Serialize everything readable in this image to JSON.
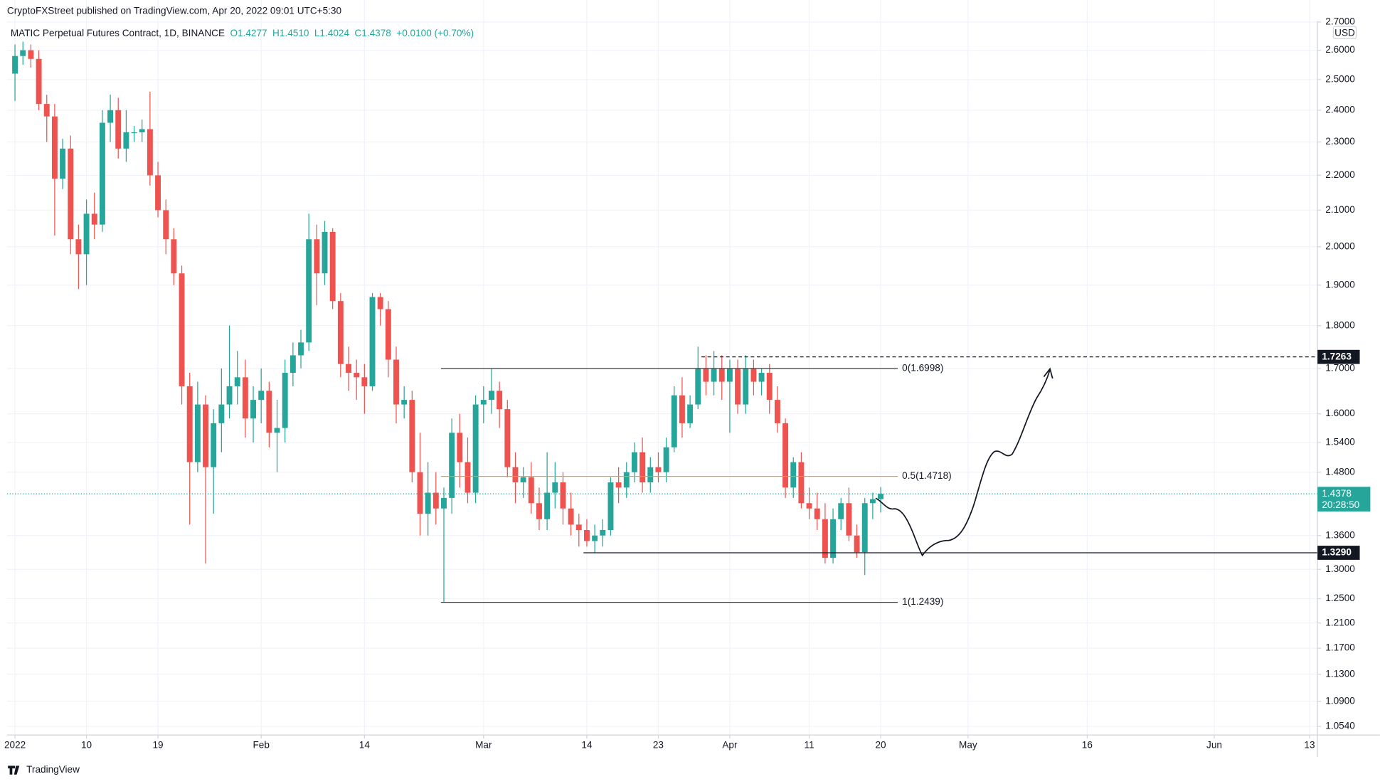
{
  "page": {
    "byline": "CryptoFXStreet published on TradingView.com, Apr 20, 2022 09:01 UTC+5:30",
    "footer": "TradingView"
  },
  "chart_data": {
    "type": "candlestick",
    "title": "MATIC Perpetual Futures Contract, 1D, BINANCE",
    "ohlc_labels": [
      "O1.4277",
      "H1.4510",
      "L1.4024",
      "C1.4378"
    ],
    "change": "+0.0100 (+0.70%)",
    "currency": "USD",
    "up_color": "#26a69a",
    "down_color": "#ef5350",
    "log_scale": true,
    "grid": true,
    "xlim": [
      "2021-12-31",
      "2022-06-14"
    ],
    "ylim": [
      1.042,
      2.703
    ],
    "xticks": [
      {
        "value": "2022-01-01",
        "label": "2022"
      },
      {
        "value": "2022-01-10",
        "label": "10"
      },
      {
        "value": "2022-01-19",
        "label": "19"
      },
      {
        "value": "2022-02-01",
        "label": "Feb"
      },
      {
        "value": "2022-02-14",
        "label": "14"
      },
      {
        "value": "2022-03-01",
        "label": "Mar"
      },
      {
        "value": "2022-03-14",
        "label": "14"
      },
      {
        "value": "2022-03-23",
        "label": "23"
      },
      {
        "value": "2022-04-01",
        "label": "Apr"
      },
      {
        "value": "2022-04-11",
        "label": "11"
      },
      {
        "value": "2022-04-20",
        "label": "20"
      },
      {
        "value": "2022-05-01",
        "label": "May"
      },
      {
        "value": "2022-05-16",
        "label": "16"
      },
      {
        "value": "2022-06-01",
        "label": "Jun"
      },
      {
        "value": "2022-06-13",
        "label": "13"
      }
    ],
    "yticks": [
      {
        "value": 1.054,
        "label": "1.0540"
      },
      {
        "value": 1.09,
        "label": "1.0900"
      },
      {
        "value": 1.13,
        "label": "1.1300"
      },
      {
        "value": 1.17,
        "label": "1.1700"
      },
      {
        "value": 1.21,
        "label": "1.2100"
      },
      {
        "value": 1.25,
        "label": "1.2500"
      },
      {
        "value": 1.3,
        "label": "1.3000"
      },
      {
        "value": 1.36,
        "label": "1.3600"
      },
      {
        "value": 1.48,
        "label": "1.4800"
      },
      {
        "value": 1.54,
        "label": "1.5400"
      },
      {
        "value": 1.6,
        "label": "1.6000"
      },
      {
        "value": 1.7,
        "label": "1.7000"
      },
      {
        "value": 1.8,
        "label": "1.8000"
      },
      {
        "value": 1.9,
        "label": "1.9000"
      },
      {
        "value": 2.0,
        "label": "2.0000"
      },
      {
        "value": 2.1,
        "label": "2.1000"
      },
      {
        "value": 2.2,
        "label": "2.2000"
      },
      {
        "value": 2.3,
        "label": "2.3000"
      },
      {
        "value": 2.4,
        "label": "2.4000"
      },
      {
        "value": 2.5,
        "label": "2.5000"
      },
      {
        "value": 2.6,
        "label": "2.6000"
      },
      {
        "value": 2.7,
        "label": "2.7000"
      }
    ],
    "x": [
      "2022-01-01",
      "2022-01-02",
      "2022-01-03",
      "2022-01-04",
      "2022-01-05",
      "2022-01-06",
      "2022-01-07",
      "2022-01-08",
      "2022-01-09",
      "2022-01-10",
      "2022-01-11",
      "2022-01-12",
      "2022-01-13",
      "2022-01-14",
      "2022-01-15",
      "2022-01-16",
      "2022-01-17",
      "2022-01-18",
      "2022-01-19",
      "2022-01-20",
      "2022-01-21",
      "2022-01-22",
      "2022-01-23",
      "2022-01-24",
      "2022-01-25",
      "2022-01-26",
      "2022-01-27",
      "2022-01-28",
      "2022-01-29",
      "2022-01-30",
      "2022-01-31",
      "2022-02-01",
      "2022-02-02",
      "2022-02-03",
      "2022-02-04",
      "2022-02-05",
      "2022-02-06",
      "2022-02-07",
      "2022-02-08",
      "2022-02-09",
      "2022-02-10",
      "2022-02-11",
      "2022-02-12",
      "2022-02-13",
      "2022-02-14",
      "2022-02-15",
      "2022-02-16",
      "2022-02-17",
      "2022-02-18",
      "2022-02-19",
      "2022-02-20",
      "2022-02-21",
      "2022-02-22",
      "2022-02-23",
      "2022-02-24",
      "2022-02-25",
      "2022-02-26",
      "2022-02-27",
      "2022-02-28",
      "2022-03-01",
      "2022-03-02",
      "2022-03-03",
      "2022-03-04",
      "2022-03-05",
      "2022-03-06",
      "2022-03-07",
      "2022-03-08",
      "2022-03-09",
      "2022-03-10",
      "2022-03-11",
      "2022-03-12",
      "2022-03-13",
      "2022-03-14",
      "2022-03-15",
      "2022-03-16",
      "2022-03-17",
      "2022-03-18",
      "2022-03-19",
      "2022-03-20",
      "2022-03-21",
      "2022-03-22",
      "2022-03-23",
      "2022-03-24",
      "2022-03-25",
      "2022-03-26",
      "2022-03-27",
      "2022-03-28",
      "2022-03-29",
      "2022-03-30",
      "2022-03-31",
      "2022-04-01",
      "2022-04-02",
      "2022-04-03",
      "2022-04-04",
      "2022-04-05",
      "2022-04-06",
      "2022-04-07",
      "2022-04-08",
      "2022-04-09",
      "2022-04-10",
      "2022-04-11",
      "2022-04-12",
      "2022-04-13",
      "2022-04-14",
      "2022-04-15",
      "2022-04-16",
      "2022-04-17",
      "2022-04-18",
      "2022-04-19",
      "2022-04-20"
    ],
    "open": [
      2.52,
      2.58,
      2.6,
      2.57,
      2.42,
      2.38,
      2.19,
      2.28,
      2.02,
      1.98,
      2.09,
      2.06,
      2.36,
      2.4,
      2.28,
      2.33,
      2.33,
      2.34,
      2.2,
      2.1,
      2.02,
      1.93,
      1.66,
      1.5,
      1.62,
      1.49,
      1.58,
      1.62,
      1.66,
      1.68,
      1.59,
      1.63,
      1.65,
      1.56,
      1.57,
      1.69,
      1.73,
      1.76,
      2.02,
      1.93,
      2.04,
      1.86,
      1.71,
      1.69,
      1.68,
      1.66,
      1.87,
      1.84,
      1.72,
      1.62,
      1.63,
      1.48,
      1.4,
      1.44,
      1.41,
      1.43,
      1.56,
      1.5,
      1.44,
      1.62,
      1.63,
      1.65,
      1.61,
      1.49,
      1.46,
      1.47,
      1.42,
      1.39,
      1.44,
      1.46,
      1.41,
      1.38,
      1.37,
      1.35,
      1.36,
      1.37,
      1.46,
      1.45,
      1.48,
      1.52,
      1.46,
      1.49,
      1.48,
      1.53,
      1.64,
      1.58,
      1.62,
      1.7,
      1.67,
      1.7,
      1.67,
      1.7,
      1.62,
      1.7,
      1.67,
      1.69,
      1.63,
      1.58,
      1.45,
      1.5,
      1.42,
      1.41,
      1.39,
      1.32,
      1.39,
      1.42,
      1.36,
      1.33,
      1.42,
      1.4277
    ],
    "high": [
      2.62,
      2.63,
      2.62,
      2.6,
      2.45,
      2.42,
      2.31,
      2.32,
      2.06,
      2.13,
      2.15,
      2.4,
      2.45,
      2.44,
      2.4,
      2.35,
      2.37,
      2.46,
      2.24,
      2.13,
      2.05,
      1.95,
      1.69,
      1.67,
      1.64,
      1.61,
      1.7,
      1.8,
      1.74,
      1.72,
      1.66,
      1.7,
      1.67,
      1.63,
      1.72,
      1.76,
      1.79,
      2.09,
      2.06,
      2.07,
      2.05,
      1.88,
      1.75,
      1.72,
      1.71,
      1.88,
      1.88,
      1.86,
      1.75,
      1.66,
      1.65,
      1.56,
      1.5,
      1.48,
      1.45,
      1.59,
      1.6,
      1.55,
      1.64,
      1.66,
      1.7,
      1.67,
      1.63,
      1.52,
      1.49,
      1.5,
      1.45,
      1.52,
      1.5,
      1.48,
      1.44,
      1.4,
      1.39,
      1.38,
      1.39,
      1.47,
      1.49,
      1.5,
      1.54,
      1.55,
      1.51,
      1.52,
      1.55,
      1.66,
      1.68,
      1.64,
      1.75,
      1.73,
      1.74,
      1.73,
      1.72,
      1.72,
      1.73,
      1.72,
      1.7,
      1.71,
      1.66,
      1.59,
      1.51,
      1.52,
      1.45,
      1.44,
      1.42,
      1.41,
      1.43,
      1.45,
      1.38,
      1.43,
      1.44,
      1.451
    ],
    "low": [
      2.43,
      2.55,
      2.54,
      2.4,
      2.3,
      2.03,
      2.16,
      1.98,
      1.89,
      1.9,
      2.02,
      2.04,
      2.3,
      2.25,
      2.24,
      2.3,
      2.3,
      2.17,
      2.08,
      1.98,
      1.9,
      1.62,
      1.38,
      1.48,
      1.31,
      1.4,
      1.52,
      1.59,
      1.62,
      1.55,
      1.54,
      1.58,
      1.53,
      1.48,
      1.54,
      1.66,
      1.7,
      1.74,
      1.85,
      1.9,
      1.84,
      1.68,
      1.65,
      1.63,
      1.6,
      1.65,
      1.8,
      1.68,
      1.58,
      1.59,
      1.46,
      1.36,
      1.36,
      1.38,
      1.2439,
      1.4,
      1.45,
      1.42,
      1.42,
      1.58,
      1.6,
      1.57,
      1.47,
      1.42,
      1.43,
      1.4,
      1.37,
      1.37,
      1.41,
      1.38,
      1.36,
      1.34,
      1.34,
      1.329,
      1.34,
      1.36,
      1.42,
      1.43,
      1.46,
      1.44,
      1.44,
      1.46,
      1.46,
      1.52,
      1.55,
      1.57,
      1.61,
      1.64,
      1.64,
      1.63,
      1.56,
      1.6,
      1.6,
      1.64,
      1.64,
      1.6,
      1.56,
      1.43,
      1.43,
      1.41,
      1.39,
      1.37,
      1.31,
      1.31,
      1.37,
      1.35,
      1.32,
      1.29,
      1.39,
      1.4024
    ],
    "close": [
      2.58,
      2.6,
      2.57,
      2.42,
      2.38,
      2.19,
      2.28,
      2.02,
      1.98,
      2.09,
      2.06,
      2.36,
      2.4,
      2.28,
      2.33,
      2.33,
      2.34,
      2.2,
      2.1,
      2.02,
      1.93,
      1.66,
      1.5,
      1.62,
      1.49,
      1.58,
      1.62,
      1.66,
      1.68,
      1.59,
      1.63,
      1.65,
      1.56,
      1.57,
      1.69,
      1.73,
      1.76,
      2.02,
      1.93,
      2.04,
      1.86,
      1.71,
      1.69,
      1.68,
      1.66,
      1.87,
      1.84,
      1.72,
      1.62,
      1.63,
      1.48,
      1.4,
      1.44,
      1.41,
      1.43,
      1.56,
      1.5,
      1.44,
      1.62,
      1.63,
      1.65,
      1.61,
      1.49,
      1.46,
      1.47,
      1.42,
      1.39,
      1.44,
      1.46,
      1.41,
      1.38,
      1.37,
      1.35,
      1.36,
      1.37,
      1.46,
      1.45,
      1.48,
      1.52,
      1.46,
      1.49,
      1.48,
      1.53,
      1.64,
      1.58,
      1.62,
      1.7,
      1.67,
      1.7,
      1.67,
      1.7,
      1.62,
      1.7,
      1.67,
      1.69,
      1.63,
      1.58,
      1.45,
      1.5,
      1.42,
      1.41,
      1.39,
      1.32,
      1.39,
      1.42,
      1.36,
      1.33,
      1.42,
      1.4277,
      1.4378
    ],
    "fib_levels": [
      {
        "label": "0(1.6998)",
        "value": 1.6998,
        "color": "#3a3a3a"
      },
      {
        "label": "0.5(1.4718)",
        "value": 1.4718,
        "color": "#ff9800"
      },
      {
        "label": "1(1.2439)",
        "value": 1.2439,
        "color": "#3a3a3a"
      }
    ],
    "price_lines": [
      {
        "label": "1.7263",
        "value": 1.7263,
        "style": "dashed",
        "color": "#131722"
      },
      {
        "label": "1.3290",
        "value": 1.329,
        "style": "solid",
        "color": "#131722"
      }
    ],
    "last_price": {
      "label": "1.4378",
      "value": 1.4378,
      "countdown": "20:28:50",
      "color": "#26a69a"
    }
  }
}
